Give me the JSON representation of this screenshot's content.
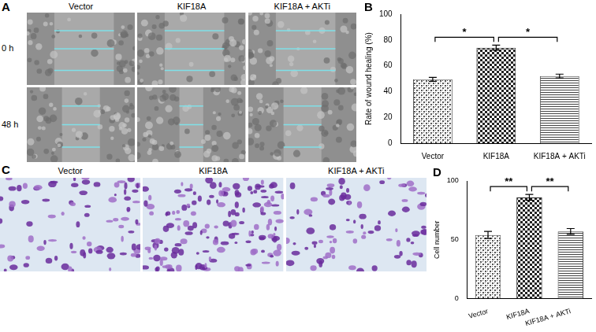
{
  "panels": [
    {
      "panel": "A",
      "columns": [
        "Vector",
        "KIF18A",
        "KIF18A + AKTi"
      ],
      "rows": [
        "0 h",
        "48 h"
      ]
    },
    {
      "panel": "C",
      "columns": [
        "Vector",
        "KIF18A",
        "KIF18A + AKTi"
      ]
    }
  ],
  "chart_data": [
    {
      "panel": "B",
      "type": "bar",
      "categories": [
        "Vector",
        "KIF18A",
        "KIF18A + AKTi"
      ],
      "values": [
        49.5,
        74,
        52
      ],
      "errors": [
        1.5,
        2,
        1.5
      ],
      "colors": [
        "#555555",
        "#222222",
        "#444444"
      ],
      "y_label": "Rate of wound healing (%)",
      "ylim": [
        0,
        100
      ],
      "yticks": [
        0,
        20,
        40,
        60,
        80,
        100
      ],
      "grid": false,
      "annotations": [
        {
          "text": "*",
          "between": [
            "Vector",
            "KIF18A"
          ]
        },
        {
          "text": "*",
          "between": [
            "KIF18A",
            "KIF18A + AKTi"
          ]
        }
      ]
    },
    {
      "panel": "D",
      "type": "bar",
      "categories": [
        "Vector",
        "KIF18A",
        "KIF18A + AKTi"
      ],
      "values": [
        54,
        86,
        57
      ],
      "errors": [
        3,
        2.5,
        2.5
      ],
      "colors": [
        "#555555",
        "#222222",
        "#444444"
      ],
      "y_label": "Cell number",
      "ylim": [
        0,
        100
      ],
      "yticks": [
        0,
        50,
        100
      ],
      "grid": false,
      "annotations": [
        {
          "text": "**",
          "between": [
            "Vector",
            "KIF18A"
          ]
        },
        {
          "text": "**",
          "between": [
            "KIF18A",
            "KIF18A + AKTi"
          ]
        }
      ]
    }
  ]
}
